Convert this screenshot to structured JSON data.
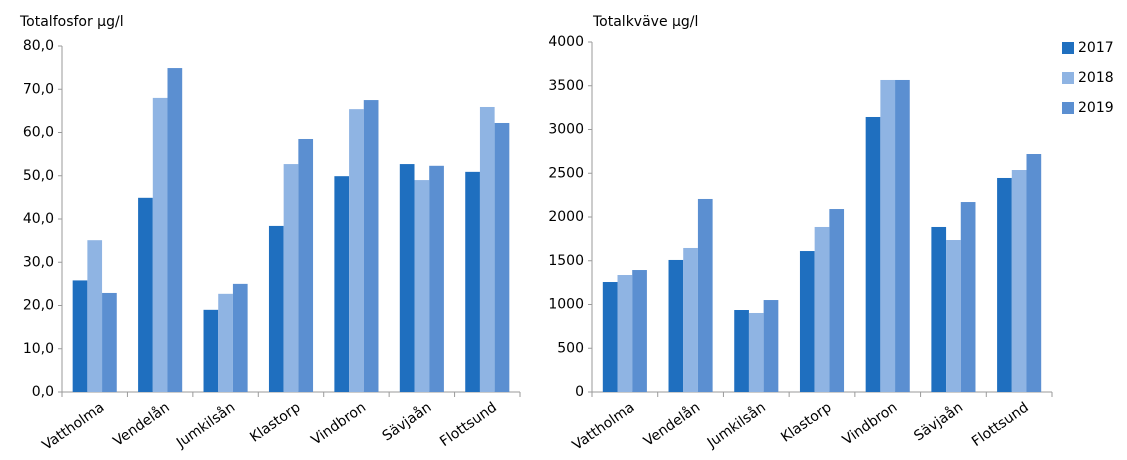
{
  "chart_data": [
    {
      "type": "bar",
      "title": "Totalfosfor µg/l",
      "categories": [
        "Vattholma",
        "Vendelån",
        "Jumkilsån",
        "Klastorp",
        "Vindbron",
        "Sävjaån",
        "Flottsund"
      ],
      "series": [
        {
          "color": "#1f6fbf",
          "values": [
            25.8,
            44.9,
            19.0,
            38.4,
            49.9,
            52.7,
            50.9
          ]
        },
        {
          "color": "#8fb4e3",
          "values": [
            35.1,
            68.0,
            22.7,
            52.7,
            65.4,
            49.0,
            65.9
          ]
        },
        {
          "color": "#5b8fd1",
          "values": [
            22.9,
            74.9,
            25.0,
            58.5,
            67.5,
            52.3,
            62.2
          ]
        }
      ],
      "ylim": [
        0,
        80
      ],
      "yticks": [
        {
          "value": 0,
          "label": "0,0"
        },
        {
          "value": 10,
          "label": "10,0"
        },
        {
          "value": 20,
          "label": "20,0"
        },
        {
          "value": 30,
          "label": "30,0"
        },
        {
          "value": 40,
          "label": "40,0"
        },
        {
          "value": 50,
          "label": "50,0"
        },
        {
          "value": 60,
          "label": "60,0"
        },
        {
          "value": 70,
          "label": "70,0"
        },
        {
          "value": 80,
          "label": "80,0"
        }
      ],
      "grid": false
    },
    {
      "type": "bar",
      "title": "Totalkväve µg/l",
      "categories": [
        "Vattholma",
        "Vendelån",
        "Jumkilsån",
        "Klastorp",
        "Vindbron",
        "Sävjaån",
        "Flottsund"
      ],
      "series": [
        {
          "name": "2017",
          "color": "#1f6fbf",
          "values": [
            1257,
            1509,
            937,
            1611,
            3143,
            1886,
            2446
          ]
        },
        {
          "name": "2018",
          "color": "#8fb4e3",
          "values": [
            1337,
            1646,
            903,
            1886,
            3566,
            1737,
            2537
          ]
        },
        {
          "name": "2019",
          "color": "#5b8fd1",
          "values": [
            1394,
            2206,
            1051,
            2091,
            3566,
            2171,
            2720
          ]
        }
      ],
      "ylim": [
        0,
        4000
      ],
      "yticks": [
        0,
        500,
        1000,
        1500,
        2000,
        2500,
        3000,
        3500,
        4000
      ],
      "grid": false,
      "legend": "right"
    }
  ]
}
